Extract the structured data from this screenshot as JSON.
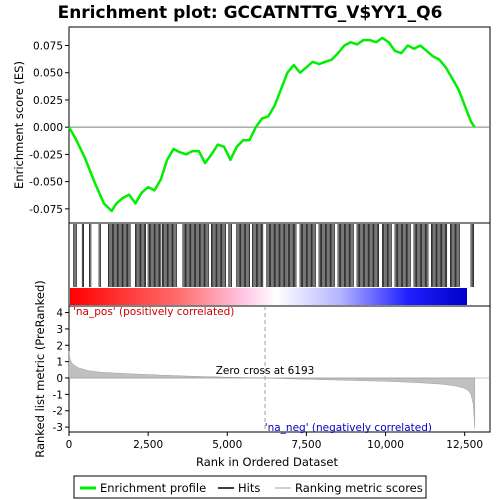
{
  "chart_data": {
    "type": "line",
    "title": "Enrichment plot: GCCATNTTG_V$YY1_Q6",
    "es_panel": {
      "ylabel": "Enrichment score (ES)",
      "yticks": [
        "0.075",
        "0.050",
        "0.025",
        "0.000",
        "-0.025",
        "-0.050",
        "-0.075"
      ],
      "ytick_values": [
        0.075,
        0.05,
        0.025,
        0.0,
        -0.025,
        -0.05,
        -0.075
      ],
      "ylim": [
        -0.088,
        0.092
      ],
      "series": [
        {
          "name": "Enrichment profile",
          "color": "#00ee00",
          "x": [
            0,
            200,
            500,
            800,
            1100,
            1350,
            1500,
            1700,
            1900,
            2100,
            2300,
            2500,
            2700,
            2900,
            3100,
            3300,
            3500,
            3700,
            3900,
            4100,
            4300,
            4500,
            4700,
            4900,
            5100,
            5300,
            5500,
            5700,
            5900,
            6100,
            6300,
            6500,
            6700,
            6900,
            7100,
            7300,
            7500,
            7700,
            7900,
            8100,
            8300,
            8500,
            8700,
            8900,
            9100,
            9300,
            9500,
            9700,
            9900,
            10100,
            10300,
            10500,
            10700,
            10900,
            11100,
            11300,
            11500,
            11700,
            11900,
            12100,
            12300,
            12500,
            12700,
            12820
          ],
          "y": [
            0.0,
            -0.01,
            -0.028,
            -0.05,
            -0.07,
            -0.077,
            -0.07,
            -0.065,
            -0.062,
            -0.07,
            -0.06,
            -0.055,
            -0.058,
            -0.048,
            -0.03,
            -0.02,
            -0.023,
            -0.025,
            -0.022,
            -0.022,
            -0.033,
            -0.025,
            -0.016,
            -0.018,
            -0.03,
            -0.018,
            -0.012,
            -0.012,
            0.0,
            0.008,
            0.01,
            0.02,
            0.035,
            0.05,
            0.057,
            0.05,
            0.055,
            0.06,
            0.058,
            0.06,
            0.062,
            0.068,
            0.075,
            0.078,
            0.076,
            0.08,
            0.08,
            0.078,
            0.082,
            0.078,
            0.07,
            0.068,
            0.075,
            0.072,
            0.075,
            0.07,
            0.065,
            0.062,
            0.055,
            0.045,
            0.035,
            0.02,
            0.005,
            0.0
          ]
        }
      ]
    },
    "hits_panel": {
      "hit_ranges": [
        [
          150,
          230
        ],
        [
          420,
          480
        ],
        [
          650,
          700
        ],
        [
          950,
          990
        ],
        [
          1250,
          1950
        ],
        [
          2100,
          2450
        ],
        [
          2500,
          2900
        ],
        [
          2950,
          3400
        ],
        [
          3600,
          4400
        ],
        [
          4500,
          4950
        ],
        [
          5050,
          5150
        ],
        [
          5300,
          5700
        ],
        [
          5800,
          6150
        ],
        [
          6250,
          7200
        ],
        [
          7300,
          7800
        ],
        [
          7900,
          8400
        ],
        [
          8500,
          9000
        ],
        [
          9100,
          9800
        ],
        [
          9900,
          10200
        ],
        [
          10300,
          10800
        ],
        [
          10900,
          11350
        ],
        [
          11450,
          11950
        ],
        [
          12050,
          12350
        ],
        [
          12700,
          12800
        ]
      ],
      "gradient": [
        "#ff0000",
        "#ff7070",
        "#ffc8e6",
        "#ffffff",
        "#b4b4ff",
        "#2020ff",
        "#0000c8"
      ]
    },
    "metric_panel": {
      "ylabel": "Ranked list metric (PreRanked)",
      "yticks": [
        "4",
        "3",
        "2",
        "1",
        "0",
        "-1",
        "-2",
        "-3"
      ],
      "ytick_values": [
        4,
        3,
        2,
        1,
        0,
        -1,
        -2,
        -3
      ],
      "ylim": [
        -3.3,
        4.4
      ],
      "zero_cross_label": "Zero cross at 6193",
      "zero_cross_x": 6193,
      "pos_label": "'na_pos' (positively correlated)",
      "neg_label": "'na_neg' (negatively correlated)",
      "pos_color": "#cc0000",
      "neg_color": "#0000cc",
      "profile_x": [
        0,
        30,
        80,
        150,
        300,
        600,
        1000,
        2000,
        3000,
        4000,
        5000,
        6193,
        7000,
        8000,
        9000,
        10000,
        11000,
        11800,
        12200,
        12450,
        12600,
        12700,
        12770,
        12820
      ],
      "profile_y": [
        1.65,
        1.2,
        0.95,
        0.8,
        0.62,
        0.45,
        0.35,
        0.25,
        0.17,
        0.1,
        0.05,
        0.0,
        -0.05,
        -0.1,
        -0.15,
        -0.2,
        -0.28,
        -0.38,
        -0.48,
        -0.6,
        -0.75,
        -1.0,
        -1.6,
        -3.1
      ],
      "fill_color": "#c0c0c0"
    },
    "xaxis": {
      "label": "Rank in Ordered Dataset",
      "xlim": [
        0,
        13300
      ],
      "ticks": [
        "0",
        "2,500",
        "5,000",
        "7,500",
        "10,000",
        "12,500"
      ],
      "tick_values": [
        0,
        2500,
        5000,
        7500,
        10000,
        12500
      ]
    },
    "legend": {
      "items": [
        {
          "label": "Enrichment profile",
          "color": "#00ee00"
        },
        {
          "label": "Hits",
          "color": "#000000"
        },
        {
          "label": "Ranking metric scores",
          "color": "#c0c0c0"
        }
      ],
      "placement": "bottom"
    }
  }
}
